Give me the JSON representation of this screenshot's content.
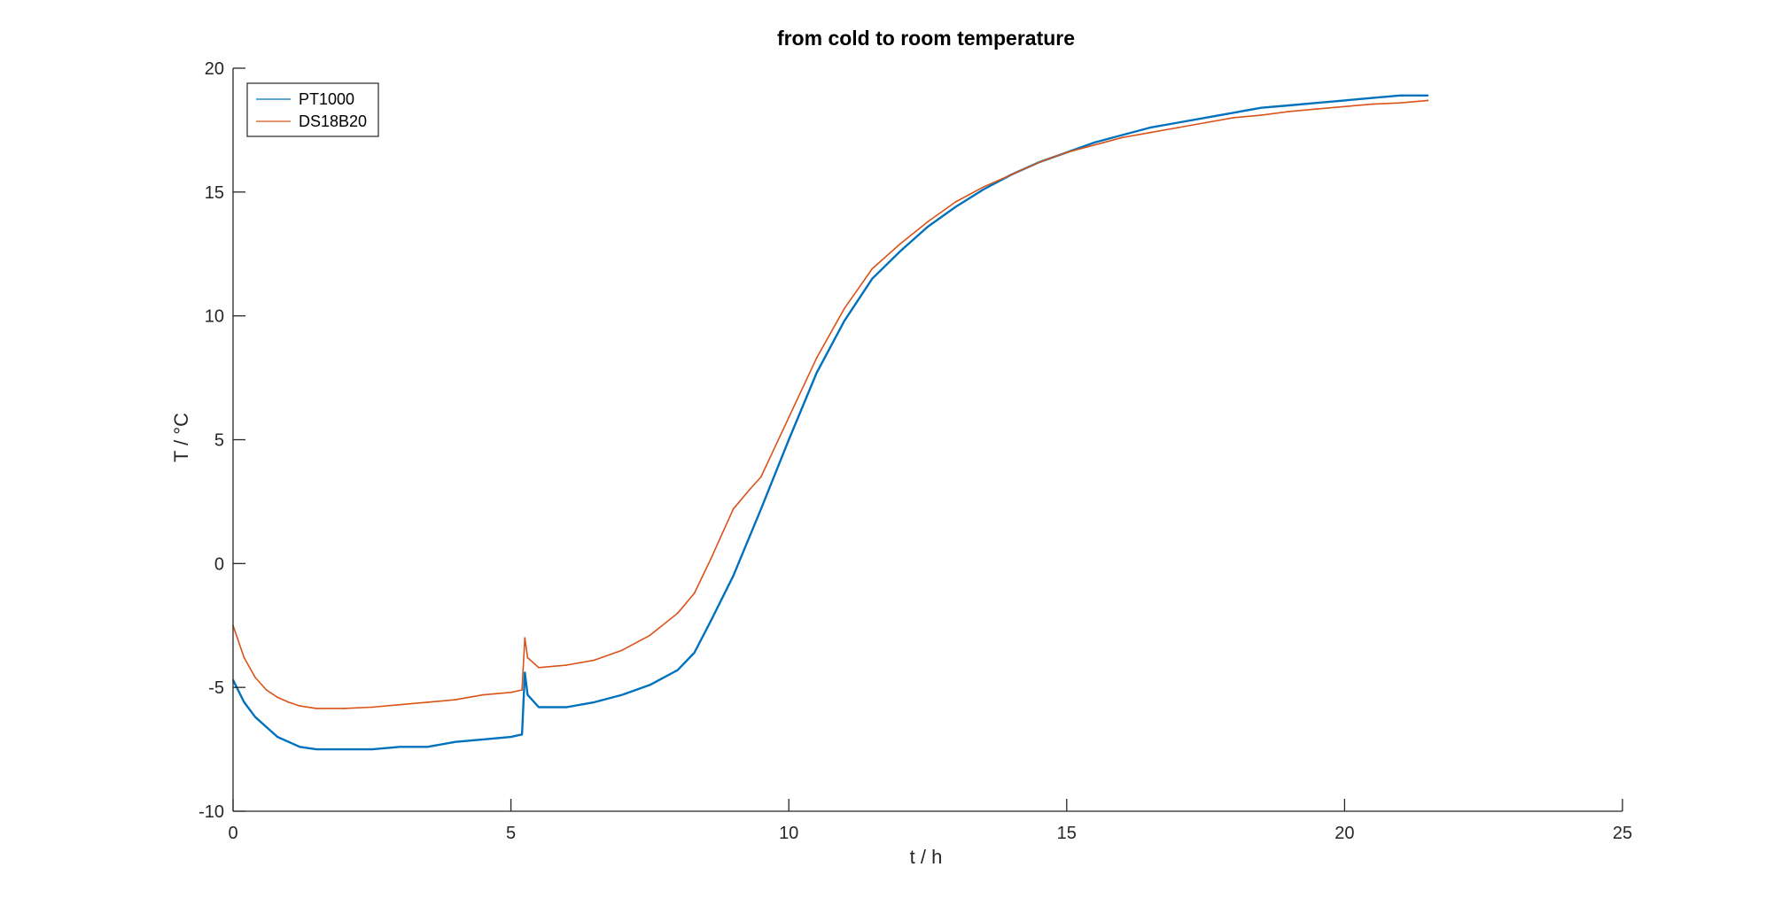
{
  "chart_data": {
    "type": "line",
    "title": "from cold to room temperature",
    "xlabel": "t / h",
    "ylabel": "T / °C",
    "xlim": [
      0,
      25
    ],
    "ylim": [
      -10,
      20
    ],
    "xticks": [
      0,
      5,
      10,
      15,
      20,
      25
    ],
    "yticks": [
      -10,
      -5,
      0,
      5,
      10,
      15,
      20
    ],
    "grid": false,
    "legend_position": "top-left",
    "series": [
      {
        "name": "PT1000",
        "color": "#0072BD",
        "x": [
          0.0,
          0.2,
          0.4,
          0.6,
          0.8,
          1.0,
          1.2,
          1.5,
          2.0,
          2.5,
          3.0,
          3.5,
          4.0,
          4.5,
          5.0,
          5.2,
          5.25,
          5.3,
          5.5,
          6.0,
          6.5,
          7.0,
          7.5,
          8.0,
          8.3,
          8.6,
          9.0,
          9.5,
          10.0,
          10.5,
          11.0,
          11.5,
          12.0,
          12.5,
          13.0,
          13.5,
          14.0,
          14.5,
          15.0,
          15.5,
          16.0,
          16.5,
          17.0,
          17.5,
          18.0,
          18.5,
          19.0,
          19.5,
          20.0,
          20.5,
          21.0,
          21.5
        ],
        "y": [
          -4.7,
          -5.6,
          -6.2,
          -6.6,
          -7.0,
          -7.2,
          -7.4,
          -7.5,
          -7.5,
          -7.5,
          -7.4,
          -7.4,
          -7.2,
          -7.1,
          -7.0,
          -6.9,
          -4.4,
          -5.3,
          -5.8,
          -5.8,
          -5.6,
          -5.3,
          -4.9,
          -4.3,
          -3.6,
          -2.3,
          -0.5,
          2.2,
          5.0,
          7.7,
          9.8,
          11.5,
          12.6,
          13.6,
          14.4,
          15.1,
          15.7,
          16.2,
          16.6,
          17.0,
          17.3,
          17.6,
          17.8,
          18.0,
          18.2,
          18.4,
          18.5,
          18.6,
          18.7,
          18.8,
          18.9,
          18.9
        ]
      },
      {
        "name": "DS18B20",
        "color": "#D95319",
        "x": [
          0.0,
          0.2,
          0.4,
          0.6,
          0.8,
          1.0,
          1.2,
          1.5,
          2.0,
          2.5,
          3.0,
          3.5,
          4.0,
          4.5,
          5.0,
          5.2,
          5.25,
          5.3,
          5.5,
          6.0,
          6.5,
          7.0,
          7.5,
          8.0,
          8.3,
          8.6,
          9.0,
          9.3,
          9.5,
          10.0,
          10.5,
          11.0,
          11.5,
          12.0,
          12.5,
          13.0,
          13.5,
          14.0,
          14.5,
          15.0,
          15.5,
          16.0,
          16.5,
          17.0,
          17.5,
          18.0,
          18.5,
          19.0,
          19.5,
          20.0,
          20.5,
          21.0,
          21.5
        ],
        "y": [
          -2.5,
          -3.8,
          -4.6,
          -5.1,
          -5.4,
          -5.6,
          -5.75,
          -5.85,
          -5.85,
          -5.8,
          -5.7,
          -5.6,
          -5.5,
          -5.3,
          -5.2,
          -5.1,
          -3.0,
          -3.8,
          -4.2,
          -4.1,
          -3.9,
          -3.5,
          -2.9,
          -2.0,
          -1.2,
          0.2,
          2.2,
          3.0,
          3.5,
          5.9,
          8.3,
          10.3,
          11.9,
          12.9,
          13.8,
          14.6,
          15.2,
          15.7,
          16.2,
          16.6,
          16.9,
          17.2,
          17.4,
          17.6,
          17.8,
          18.0,
          18.1,
          18.25,
          18.35,
          18.45,
          18.55,
          18.6,
          18.7
        ]
      }
    ]
  }
}
